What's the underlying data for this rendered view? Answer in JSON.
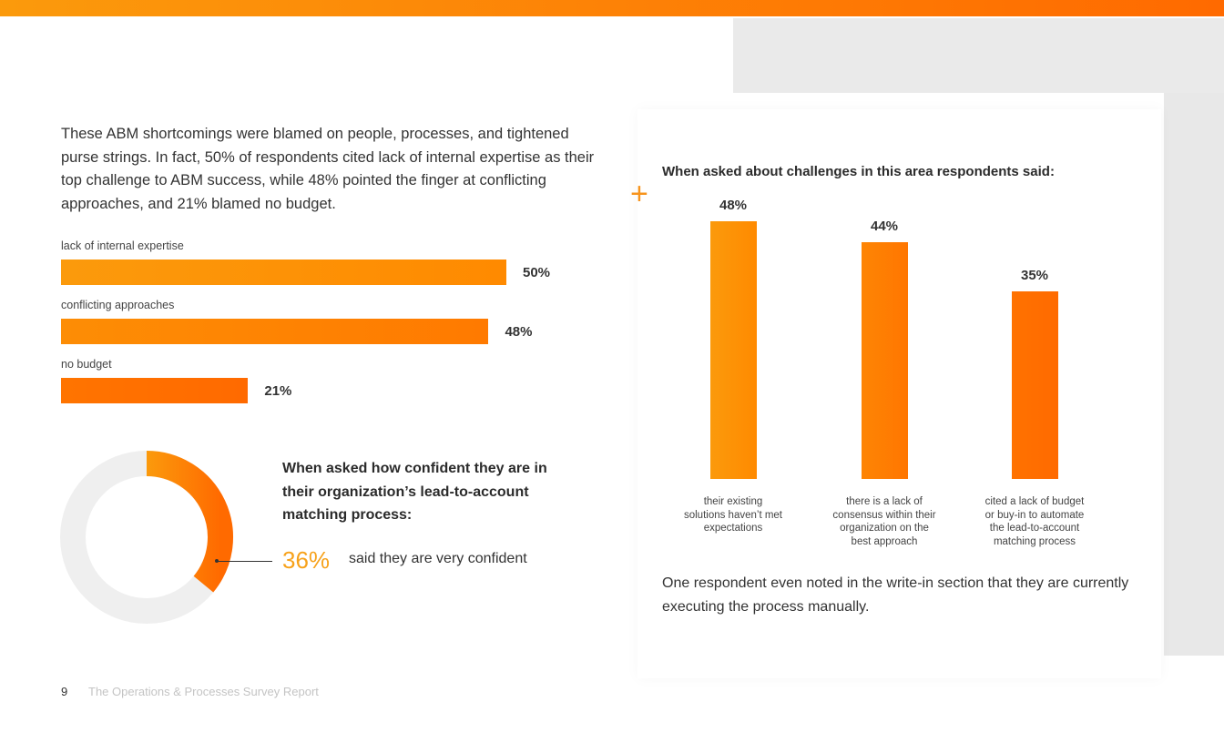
{
  "intro": "These ABM shortcomings were blamed on people, processes, and tightened purse strings. In fact, 50% of respondents cited lack of internal expertise as their top challenge to ABM success, while 48% pointed the finger at conflicting approaches, and 21% blamed no budget.",
  "colors": {
    "accent_start": "#fb9a0c",
    "accent_end": "#ff6a00",
    "donut_track": "#efefef",
    "highlight_text": "#f7a21b"
  },
  "chart_data": [
    {
      "type": "bar",
      "orientation": "horizontal",
      "categories": [
        "lack of internal expertise",
        "conflicting approaches",
        "no budget"
      ],
      "values": [
        50,
        48,
        21
      ],
      "value_labels": [
        "50%",
        "48%",
        "21%"
      ],
      "unit": "%",
      "grid": false
    },
    {
      "type": "bar",
      "orientation": "vertical",
      "title": "When asked about challenges in this area respondents said:",
      "categories": [
        "their existing solutions haven't met expectations",
        "there is a lack of consensus within their organization on the best approach",
        "cited a lack of budget or buy-in to automate the lead-to-account matching process"
      ],
      "category_lines": [
        [
          "their existing",
          "solutions haven’t met",
          "expectations"
        ],
        [
          "there is a lack of",
          "consensus within their",
          "organization on the",
          "best approach"
        ],
        [
          "cited a lack of budget",
          "or buy-in to automate",
          "the lead-to-account",
          "matching process"
        ]
      ],
      "values": [
        48,
        44,
        35
      ],
      "value_labels": [
        "48%",
        "44%",
        "35%"
      ],
      "unit": "%",
      "grid": false
    },
    {
      "type": "pie",
      "style": "donut",
      "title": "When asked how confident they are in their organization’s lead-to-account matching process:",
      "values": [
        36,
        64
      ],
      "value_label": "36%",
      "annotation": "said they are very confident"
    }
  ],
  "note": "One respondent even noted in the write-in section that they are currently executing the process manually.",
  "footer": {
    "page_number": "9",
    "report_title": "The Operations & Processes Survey Report"
  }
}
